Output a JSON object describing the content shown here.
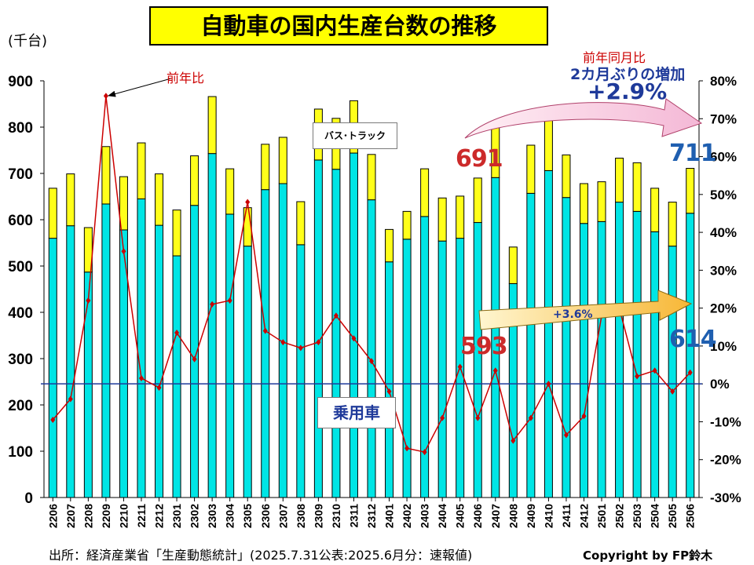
{
  "title": "自動車の国内生産台数の推移",
  "unit_label": "(千台)",
  "source": "出所：経済産業省「生産動態統計」(2025.7.31公表:2025.6月分：速報値)",
  "copyright": "Copyright by FP鈴木",
  "labels": {
    "yoy": "前年比",
    "bus_truck": "バス･トラック",
    "passenger": "乗用車"
  },
  "annotations": {
    "yoy_title": "前年同月比",
    "two_month": "2カ月ぶりの増加",
    "total_pct": "+2.9%",
    "passenger_pct": "+3.6%",
    "v691": "691",
    "v593": "593",
    "v711": "711",
    "v614": "614"
  },
  "colors": {
    "passenger": "#00e5e5",
    "bus_truck": "#ffff1a",
    "yoy_line": "#cc0000",
    "zero_line": "#1f3a9a"
  },
  "chart_data": {
    "type": "bar",
    "stacked": true,
    "categories": [
      "2206",
      "2207",
      "2208",
      "2209",
      "2210",
      "2211",
      "2212",
      "2301",
      "2302",
      "2303",
      "2304",
      "2305",
      "2306",
      "2307",
      "2308",
      "2309",
      "2310",
      "2311",
      "2312",
      "2401",
      "2402",
      "2403",
      "2404",
      "2405",
      "2406",
      "2407",
      "2408",
      "2409",
      "2410",
      "2411",
      "2412",
      "2501",
      "2502",
      "2503",
      "2504",
      "2505",
      "2506"
    ],
    "series": [
      {
        "name": "乗用車",
        "values": [
          560,
          587,
          487,
          634,
          578,
          645,
          588,
          522,
          631,
          743,
          612,
          543,
          665,
          678,
          546,
          729,
          709,
          744,
          643,
          509,
          558,
          607,
          554,
          560,
          594,
          691,
          462,
          657,
          706,
          648,
          592,
          596,
          638,
          618,
          574,
          543,
          614
        ]
      },
      {
        "name": "バス･トラック",
        "values": [
          108,
          112,
          96,
          124,
          115,
          121,
          111,
          99,
          107,
          123,
          98,
          83,
          98,
          100,
          93,
          110,
          110,
          113,
          98,
          70,
          60,
          103,
          93,
          91,
          96,
          113,
          79,
          104,
          110,
          92,
          86,
          86,
          95,
          105,
          94,
          95,
          97
        ]
      },
      {
        "name": "前年比",
        "axis": "right",
        "values": [
          -9.5,
          -4,
          22,
          76,
          35,
          1.5,
          -1,
          13.5,
          6.5,
          21,
          22,
          48,
          14,
          11,
          9.5,
          11,
          18,
          12,
          6,
          -2,
          -17,
          -18,
          -9,
          4.5,
          -9,
          3.5,
          -15,
          -9,
          0,
          -13.5,
          -8.5,
          18,
          20,
          2,
          3.5,
          -2,
          3
        ]
      }
    ],
    "ylim": [
      0,
      900
    ],
    "y2lim": [
      -30,
      80
    ],
    "yticks": [
      0,
      100,
      200,
      300,
      400,
      500,
      600,
      700,
      800,
      900
    ],
    "y2ticks": [
      "-30%",
      "-20%",
      "-10%",
      "0%",
      "10%",
      "20%",
      "30%",
      "40%",
      "50%",
      "60%",
      "70%",
      "80%"
    ],
    "legend": "none",
    "grid": false
  }
}
